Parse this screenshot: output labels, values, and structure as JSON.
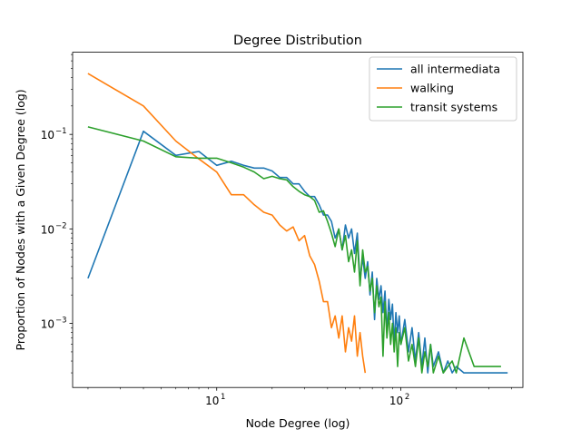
{
  "chart_data": {
    "type": "line",
    "title": "Degree Distribution",
    "xlabel": "Node Degree (log)",
    "ylabel": "Proportion of Nodes with a Given Degree (log)",
    "xscale": "log",
    "yscale": "log",
    "xlim": [
      1.65,
      460
    ],
    "ylim": [
      0.00021,
      0.74
    ],
    "x_ticks": [
      {
        "value": 10,
        "label": "10",
        "exp": "1"
      },
      {
        "value": 100,
        "label": "10",
        "exp": "2"
      }
    ],
    "y_ticks": [
      {
        "value": 0.001,
        "label": "10",
        "exp": "−3"
      },
      {
        "value": 0.01,
        "label": "10",
        "exp": "−2"
      },
      {
        "value": 0.1,
        "label": "10",
        "exp": "−1"
      }
    ],
    "grid": false,
    "legend_position": "top-right",
    "series": [
      {
        "name": "all intermediata",
        "color": "#1f77b4",
        "x": [
          2,
          4,
          6,
          8,
          10,
          12,
          14,
          16,
          18,
          20,
          22,
          24,
          26,
          28,
          30,
          32,
          34,
          36,
          38,
          40,
          42,
          44,
          46,
          48,
          50,
          52,
          54,
          56,
          58,
          60,
          62,
          64,
          66,
          68,
          70,
          72,
          74,
          76,
          78,
          80,
          82,
          84,
          86,
          88,
          90,
          92,
          94,
          96,
          98,
          100,
          105,
          110,
          115,
          120,
          125,
          130,
          135,
          140,
          145,
          150,
          160,
          170,
          180,
          190,
          200,
          220,
          250,
          300,
          350,
          380
        ],
        "y": [
          0.003,
          0.108,
          0.06,
          0.066,
          0.047,
          0.052,
          0.047,
          0.044,
          0.044,
          0.041,
          0.035,
          0.035,
          0.03,
          0.03,
          0.025,
          0.022,
          0.022,
          0.018,
          0.014,
          0.014,
          0.012,
          0.008,
          0.01,
          0.006,
          0.011,
          0.008,
          0.01,
          0.0055,
          0.009,
          0.0028,
          0.005,
          0.003,
          0.0045,
          0.002,
          0.0035,
          0.0011,
          0.003,
          0.0018,
          0.0025,
          0.0013,
          0.0022,
          0.0008,
          0.0018,
          0.0011,
          0.0016,
          0.0006,
          0.0013,
          0.0008,
          0.0012,
          0.0006,
          0.0011,
          0.0005,
          0.0009,
          0.0004,
          0.0008,
          0.00035,
          0.0007,
          0.0003,
          0.0006,
          0.00035,
          0.0005,
          0.0003,
          0.0004,
          0.0003,
          0.00035,
          0.0003,
          0.0003,
          0.0003,
          0.0003,
          0.0003
        ]
      },
      {
        "name": "walking",
        "color": "#ff7f0e",
        "x": [
          2,
          4,
          6,
          8,
          10,
          12,
          14,
          16,
          18,
          20,
          22,
          24,
          26,
          28,
          30,
          32,
          34,
          36,
          38,
          40,
          42,
          44,
          46,
          48,
          50,
          52,
          54,
          56,
          58,
          60,
          62,
          64
        ],
        "y": [
          0.44,
          0.2,
          0.085,
          0.055,
          0.04,
          0.023,
          0.023,
          0.018,
          0.015,
          0.014,
          0.011,
          0.0095,
          0.0105,
          0.0075,
          0.0085,
          0.0052,
          0.0042,
          0.0028,
          0.0017,
          0.0017,
          0.0009,
          0.0012,
          0.0007,
          0.0012,
          0.0005,
          0.0009,
          0.00065,
          0.0012,
          0.00045,
          0.0008,
          0.00045,
          0.0003
        ]
      },
      {
        "name": "transit systems",
        "color": "#2ca02c",
        "x": [
          2,
          4,
          6,
          8,
          10,
          12,
          14,
          16,
          18,
          20,
          22,
          24,
          26,
          28,
          30,
          32,
          34,
          36,
          38,
          40,
          42,
          44,
          46,
          48,
          50,
          52,
          54,
          56,
          58,
          60,
          62,
          64,
          66,
          68,
          70,
          72,
          74,
          76,
          78,
          80,
          82,
          84,
          86,
          88,
          90,
          92,
          94,
          96,
          98,
          100,
          105,
          110,
          115,
          120,
          125,
          130,
          135,
          140,
          145,
          150,
          160,
          170,
          180,
          190,
          200,
          220,
          250,
          300,
          350
        ],
        "y": [
          0.12,
          0.085,
          0.058,
          0.056,
          0.056,
          0.05,
          0.045,
          0.04,
          0.034,
          0.036,
          0.034,
          0.033,
          0.028,
          0.025,
          0.023,
          0.022,
          0.02,
          0.015,
          0.0155,
          0.012,
          0.009,
          0.0065,
          0.01,
          0.006,
          0.0085,
          0.0045,
          0.006,
          0.0035,
          0.0075,
          0.0025,
          0.006,
          0.0035,
          0.004,
          0.0022,
          0.003,
          0.0013,
          0.0025,
          0.0015,
          0.0019,
          0.00045,
          0.0017,
          0.0007,
          0.0013,
          0.0006,
          0.001,
          0.0005,
          0.0009,
          0.00035,
          0.0008,
          0.0006,
          0.0009,
          0.0004,
          0.0006,
          0.00035,
          0.0007,
          0.0003,
          0.0005,
          0.00035,
          0.0006,
          0.0003,
          0.00045,
          0.0003,
          0.00035,
          0.0004,
          0.0003,
          0.0007,
          0.00035,
          0.00035,
          0.00035
        ]
      }
    ]
  }
}
